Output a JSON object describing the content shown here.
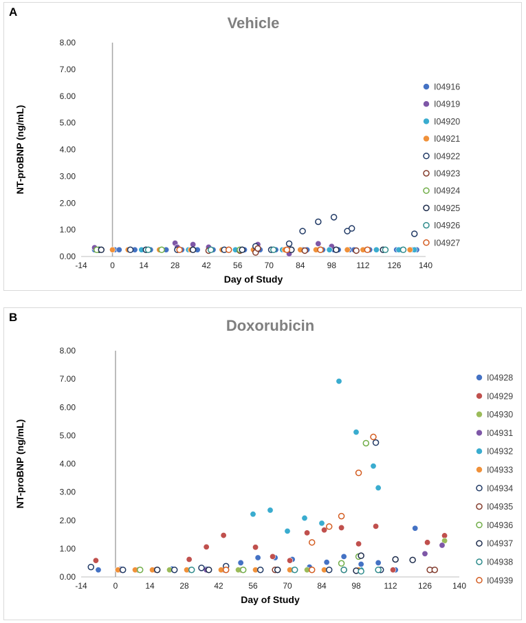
{
  "chart_data": [
    {
      "panel": "A",
      "type": "scatter",
      "title": "Vehicle",
      "xlabel": "Day of Study",
      "ylabel": "NT-proBNP (ng/mL)",
      "xlim": [
        -14,
        140
      ],
      "ylim": [
        0,
        8
      ],
      "xticks": [
        -14,
        0,
        14,
        28,
        42,
        56,
        70,
        84,
        98,
        112,
        126,
        140
      ],
      "yticks": [
        "0.00",
        "1.00",
        "2.00",
        "3.00",
        "4.00",
        "5.00",
        "6.00",
        "7.00",
        "8.00"
      ],
      "reference_line_x": 0,
      "legend_position": "right",
      "series": [
        {
          "name": "I04916",
          "color": "#4472c4",
          "filled": true,
          "points": [
            [
              -8,
              0.25
            ],
            [
              1,
              0.25
            ],
            [
              3,
              0.25
            ],
            [
              8,
              0.25
            ],
            [
              10,
              0.25
            ],
            [
              15,
              0.25
            ],
            [
              17,
              0.25
            ],
            [
              22,
              0.25
            ],
            [
              24,
              0.25
            ],
            [
              29,
              0.25
            ],
            [
              31,
              0.25
            ],
            [
              36,
              0.25
            ],
            [
              38,
              0.25
            ],
            [
              43,
              0.25
            ],
            [
              45,
              0.25
            ],
            [
              50,
              0.25
            ],
            [
              52,
              0.25
            ],
            [
              57,
              0.25
            ],
            [
              59,
              0.25
            ],
            [
              64,
              0.25
            ],
            [
              66,
              0.25
            ],
            [
              71,
              0.25
            ],
            [
              73,
              0.25
            ],
            [
              78,
              0.25
            ],
            [
              80,
              0.25
            ],
            [
              85,
              0.25
            ],
            [
              87,
              0.25
            ],
            [
              92,
              0.25
            ],
            [
              94,
              0.25
            ],
            [
              99,
              0.25
            ],
            [
              101,
              0.25
            ],
            [
              106,
              0.25
            ],
            [
              108,
              0.25
            ],
            [
              113,
              0.25
            ],
            [
              115,
              0.25
            ],
            [
              127,
              0.25
            ],
            [
              129,
              0.25
            ],
            [
              134,
              0.25
            ],
            [
              136,
              0.25
            ]
          ]
        },
        {
          "name": "I04919",
          "color": "#7e57a7",
          "filled": true,
          "points": [
            [
              -8,
              0.33
            ],
            [
              28,
              0.5
            ],
            [
              29,
              0.35
            ],
            [
              36,
              0.45
            ],
            [
              43,
              0.35
            ],
            [
              65,
              0.45
            ],
            [
              79,
              0.1
            ],
            [
              92,
              0.48
            ],
            [
              98,
              0.38
            ]
          ]
        },
        {
          "name": "I04920",
          "color": "#3aaccf",
          "filled": true,
          "points": [
            [
              -7,
              0.25
            ],
            [
              13,
              0.25
            ],
            [
              34,
              0.25
            ],
            [
              55,
              0.25
            ],
            [
              76,
              0.25
            ],
            [
              97,
              0.25
            ],
            [
              118,
              0.25
            ],
            [
              128,
              0.25
            ],
            [
              135,
              0.25
            ]
          ]
        },
        {
          "name": "I04921",
          "color": "#f0913a",
          "filled": true,
          "points": [
            [
              0,
              0.25
            ],
            [
              7,
              0.25
            ],
            [
              21,
              0.25
            ],
            [
              35,
              0.25
            ],
            [
              49,
              0.25
            ],
            [
              63,
              0.25
            ],
            [
              77,
              0.25
            ],
            [
              84,
              0.25
            ],
            [
              91,
              0.25
            ],
            [
              105,
              0.25
            ],
            [
              112,
              0.25
            ],
            [
              133,
              0.25
            ]
          ]
        },
        {
          "name": "I04922",
          "color": "#1f3864",
          "filled": false,
          "points": [
            [
              64,
              0.38
            ],
            [
              79,
              0.48
            ],
            [
              85,
              0.95
            ],
            [
              92,
              1.3
            ],
            [
              99,
              1.47
            ],
            [
              105,
              0.95
            ],
            [
              107,
              1.05
            ],
            [
              135,
              0.85
            ],
            [
              -6,
              0.25
            ],
            [
              8,
              0.25
            ],
            [
              29,
              0.25
            ],
            [
              50,
              0.25
            ],
            [
              71,
              0.25
            ]
          ]
        },
        {
          "name": "I04923",
          "color": "#843c2c",
          "filled": false,
          "points": [
            [
              64,
              0.15
            ],
            [
              65,
              0.3
            ],
            [
              43,
              0.22
            ],
            [
              57,
              0.22
            ],
            [
              86,
              0.22
            ],
            [
              109,
              0.22
            ]
          ]
        },
        {
          "name": "I04924",
          "color": "#70ad47",
          "filled": false,
          "points": [
            [
              -7,
              0.25
            ],
            [
              22,
              0.25
            ],
            [
              57,
              0.25
            ],
            [
              93,
              0.25
            ]
          ]
        },
        {
          "name": "I04925",
          "color": "#1b2a4a",
          "filled": false,
          "points": [
            [
              -5,
              0.25
            ],
            [
              15,
              0.25
            ],
            [
              36,
              0.25
            ],
            [
              58,
              0.25
            ],
            [
              80,
              0.25
            ],
            [
              100,
              0.25
            ],
            [
              121,
              0.25
            ]
          ]
        },
        {
          "name": "I04926",
          "color": "#2e8b8b",
          "filled": false,
          "points": [
            [
              122,
              0.25
            ],
            [
              130,
              0.25
            ],
            [
              16,
              0.25
            ],
            [
              44,
              0.25
            ],
            [
              72,
              0.25
            ]
          ]
        },
        {
          "name": "I04927",
          "color": "#d35b1f",
          "filled": false,
          "points": [
            [
              30,
              0.25
            ],
            [
              52,
              0.25
            ],
            [
              78,
              0.25
            ],
            [
              93,
              0.25
            ],
            [
              114,
              0.25
            ]
          ]
        }
      ]
    },
    {
      "panel": "B",
      "type": "scatter",
      "title": "Doxorubicin",
      "xlabel": "Day of Study",
      "ylabel": "NT-proBNP (ng/mL)",
      "xlim": [
        -14,
        140
      ],
      "ylim": [
        0,
        8
      ],
      "xticks": [
        -14,
        0,
        14,
        28,
        42,
        56,
        70,
        84,
        98,
        112,
        126,
        140
      ],
      "yticks": [
        "0.00",
        "1.00",
        "2.00",
        "3.00",
        "4.00",
        "5.00",
        "6.00",
        "7.00",
        "8.00"
      ],
      "reference_line_x": 0,
      "legend_position": "right",
      "series": [
        {
          "name": "I04928",
          "color": "#4472c4",
          "filled": true,
          "points": [
            [
              -7,
              0.25
            ],
            [
              2,
              0.28
            ],
            [
              9,
              0.25
            ],
            [
              16,
              0.25
            ],
            [
              23,
              0.28
            ],
            [
              30,
              0.25
            ],
            [
              37,
              0.28
            ],
            [
              44,
              0.25
            ],
            [
              51,
              0.5
            ],
            [
              58,
              0.68
            ],
            [
              65,
              0.68
            ],
            [
              72,
              0.62
            ],
            [
              79,
              0.35
            ],
            [
              86,
              0.52
            ],
            [
              93,
              0.72
            ],
            [
              100,
              0.45
            ],
            [
              107,
              0.5
            ],
            [
              114,
              0.25
            ],
            [
              122,
              1.72
            ],
            [
              129,
              0.25
            ]
          ]
        },
        {
          "name": "I04929",
          "color": "#c0504d",
          "filled": true,
          "points": [
            [
              -8,
              0.58
            ],
            [
              30,
              0.62
            ],
            [
              37,
              1.06
            ],
            [
              44,
              1.47
            ],
            [
              57,
              1.05
            ],
            [
              64,
              0.72
            ],
            [
              71,
              0.58
            ],
            [
              78,
              1.56
            ],
            [
              85,
              1.66
            ],
            [
              92,
              1.74
            ],
            [
              99,
              1.17
            ],
            [
              106,
              1.79
            ],
            [
              127,
              1.22
            ],
            [
              134,
              1.46
            ],
            [
              2,
              0.25
            ],
            [
              16,
              0.25
            ],
            [
              51,
              0.25
            ],
            [
              113,
              0.25
            ]
          ]
        },
        {
          "name": "I04930",
          "color": "#9bbb59",
          "filled": true,
          "points": [
            [
              134,
              1.28
            ],
            [
              22,
              0.25
            ],
            [
              50,
              0.25
            ],
            [
              78,
              0.25
            ]
          ]
        },
        {
          "name": "I04931",
          "color": "#7e57a7",
          "filled": true,
          "points": [
            [
              126,
              0.82
            ],
            [
              133,
              1.12
            ],
            [
              9,
              0.25
            ],
            [
              37,
              0.25
            ],
            [
              65,
              0.25
            ]
          ]
        },
        {
          "name": "I04932",
          "color": "#3aaccf",
          "filled": true,
          "points": [
            [
              56,
              2.22
            ],
            [
              63,
              2.36
            ],
            [
              70,
              1.62
            ],
            [
              77,
              2.08
            ],
            [
              84,
              1.9
            ],
            [
              91,
              6.92
            ],
            [
              98,
              5.12
            ],
            [
              105,
              3.92
            ],
            [
              107,
              3.15
            ],
            [
              72,
              0.25
            ],
            [
              100,
              0.25
            ]
          ]
        },
        {
          "name": "I04933",
          "color": "#f0913a",
          "filled": true,
          "points": [
            [
              1,
              0.25
            ],
            [
              8,
              0.25
            ],
            [
              15,
              0.25
            ],
            [
              29,
              0.25
            ],
            [
              43,
              0.25
            ],
            [
              57,
              0.25
            ],
            [
              71,
              0.25
            ],
            [
              85,
              0.25
            ],
            [
              99,
              0.25
            ]
          ]
        },
        {
          "name": "I04934",
          "color": "#1f3864",
          "filled": false,
          "points": [
            [
              -10,
              0.35
            ],
            [
              35,
              0.32
            ],
            [
              45,
              0.38
            ],
            [
              106,
              4.75
            ],
            [
              3,
              0.25
            ],
            [
              24,
              0.25
            ],
            [
              59,
              0.25
            ],
            [
              87,
              0.25
            ],
            [
              108,
              0.25
            ]
          ]
        },
        {
          "name": "I04935",
          "color": "#843c2c",
          "filled": false,
          "points": [
            [
              128,
              0.25
            ],
            [
              130,
              0.25
            ],
            [
              65,
              0.25
            ],
            [
              93,
              0.25
            ]
          ]
        },
        {
          "name": "I04936",
          "color": "#70ad47",
          "filled": false,
          "points": [
            [
              92,
              0.48
            ],
            [
              99,
              0.72
            ],
            [
              102,
              4.73
            ],
            [
              10,
              0.25
            ],
            [
              52,
              0.25
            ]
          ]
        },
        {
          "name": "I04937",
          "color": "#1b2a4a",
          "filled": false,
          "points": [
            [
              98,
              0.22
            ],
            [
              114,
              0.62
            ],
            [
              121,
              0.6
            ],
            [
              100,
              0.75
            ],
            [
              17,
              0.25
            ],
            [
              38,
              0.25
            ],
            [
              66,
              0.25
            ]
          ]
        },
        {
          "name": "I04938",
          "color": "#2e8b8b",
          "filled": false,
          "points": [
            [
              93,
              0.25
            ],
            [
              100,
              0.2
            ],
            [
              107,
              0.25
            ],
            [
              31,
              0.25
            ],
            [
              73,
              0.25
            ]
          ]
        },
        {
          "name": "I04939",
          "color": "#d35b1f",
          "filled": false,
          "points": [
            [
              80,
              1.22
            ],
            [
              87,
              1.78
            ],
            [
              92,
              2.15
            ],
            [
              99,
              3.68
            ],
            [
              105,
              4.95
            ],
            [
              45,
              0.25
            ],
            [
              80,
              0.25
            ]
          ]
        }
      ]
    }
  ],
  "panels": [
    {
      "letter": "A"
    },
    {
      "letter": "B"
    }
  ]
}
